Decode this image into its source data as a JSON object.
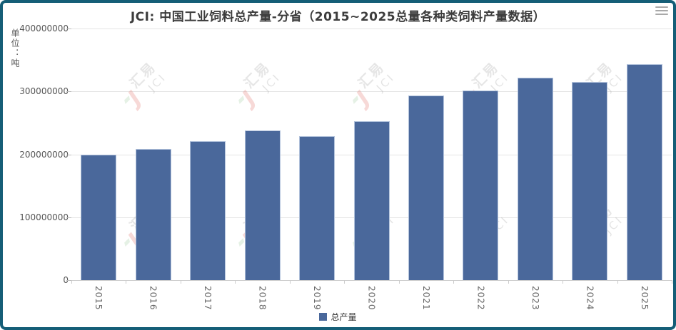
{
  "header": {
    "title": "JCI: 中国工业饲料总产量-分省（2015~2025总量各种类饲料产量数据）"
  },
  "toolbox": {
    "menu_icon": "hamburger-menu-icon"
  },
  "y_axis": {
    "unit_label": "单位：吨",
    "tick_labels": [
      "400000000",
      "300000000",
      "200000000",
      "100000000",
      "0"
    ]
  },
  "x_axis": {
    "labels": [
      "2015",
      "2016",
      "2017",
      "2018",
      "2019",
      "2020",
      "2021",
      "2022",
      "2023",
      "2024",
      "2025"
    ]
  },
  "legend": {
    "items": [
      {
        "label": "总产量",
        "color": "#4a689b"
      }
    ]
  },
  "watermark": {
    "brand_cn": "汇易",
    "brand_en": "JCI",
    "accent_red": "#e4827c",
    "accent_green": "#96c896"
  },
  "colors": {
    "bar_fill": "#4a689b",
    "bar_stroke": "#b3c3dc",
    "frame_border": "#155e77",
    "gridline": "#e4e4e4",
    "axis_line": "#cccccc"
  },
  "chart_data": {
    "type": "bar",
    "title": "JCI: 中国工业饲料总产量-分省（2015~2025总量各种类饲料产量数据）",
    "categories": [
      "2015",
      "2016",
      "2017",
      "2018",
      "2019",
      "2020",
      "2021",
      "2022",
      "2023",
      "2024",
      "2025"
    ],
    "series": [
      {
        "name": "总产量",
        "color": "#4a689b",
        "values": [
          200000000,
          209000000,
          221500000,
          237500000,
          229000000,
          253000000,
          293500000,
          302000000,
          321500000,
          315500000,
          343500000
        ]
      }
    ],
    "xlabel": "",
    "ylabel": "单位：吨",
    "unit": "吨",
    "ylim": [
      0,
      400000000
    ],
    "y_tick_interval": 100000000,
    "y_tick_labels": [
      "0",
      "100000000",
      "200000000",
      "300000000",
      "400000000"
    ],
    "grid": true,
    "legend_position": "bottom",
    "x_label_rotation": 90
  }
}
